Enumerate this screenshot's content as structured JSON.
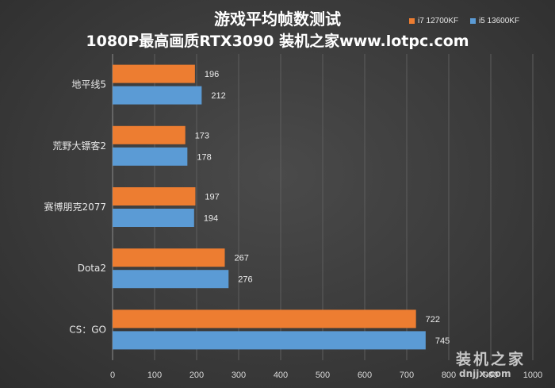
{
  "chart_data": {
    "type": "bar",
    "orientation": "horizontal",
    "title": "游戏平均帧数测试",
    "subtitle": "1080P最高画质RTX3090  装机之家www.lotpc.com",
    "categories": [
      "地平线5",
      "荒野大镖客2",
      "赛博朋克2077",
      "Dota2",
      "CS：GO"
    ],
    "series": [
      {
        "name": "i7 12700KF",
        "color": "#ed7d31",
        "values": [
          196,
          173,
          197,
          267,
          722
        ]
      },
      {
        "name": "i5 13600KF",
        "color": "#5b9bd5",
        "values": [
          212,
          178,
          194,
          276,
          745
        ]
      }
    ],
    "xlim": [
      0,
      1000
    ],
    "xticks": [
      0,
      100,
      200,
      300,
      400,
      500,
      600,
      700,
      800,
      900,
      1000
    ],
    "grid": true,
    "legend_position": "top-right",
    "xlabel": "",
    "ylabel": ""
  },
  "watermark": {
    "line1": "装机之家",
    "line2": "dnjjx.com"
  }
}
